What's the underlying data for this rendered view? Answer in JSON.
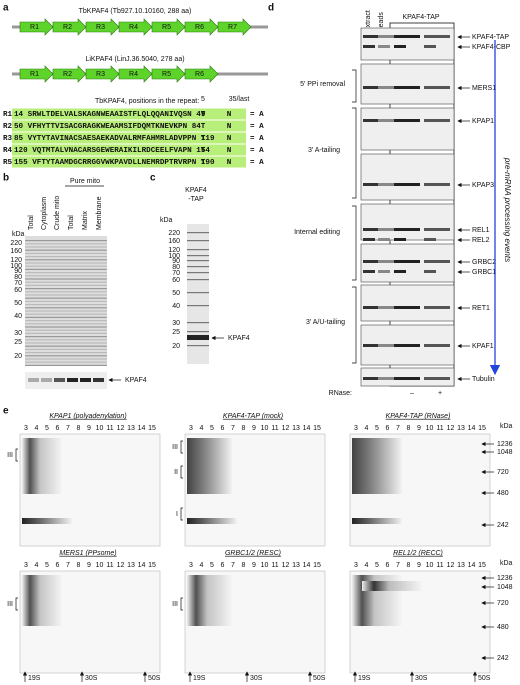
{
  "panels": {
    "a": {
      "label": "a",
      "tb_title": "TbKPAF4 (Tb927.10.10160, 288 aa)",
      "tb_repeats": [
        "R1",
        "R2",
        "R3",
        "R4",
        "R5",
        "R6",
        "R7"
      ],
      "li_title": "LiKPAF4 (LinJ.36.5040, 278 aa)",
      "li_repeats": [
        "R1",
        "R2",
        "R3",
        "R4",
        "R5",
        "R6"
      ],
      "pos_title": "TbKPAF4, positions in the repeat:",
      "pos5": "5",
      "pos35": "35/last",
      "rows": [
        {
          "name": "R1",
          "seq": "14 SRWLTDELVALSKAGNWEAAISTFLQLQQANIVQSN 49"
        },
        {
          "name": "R2",
          "seq": "50 VFHYTTVISACGRAGKWEAAMSIFDQMTKNEVKPN 84"
        },
        {
          "name": "R3",
          "seq": "85 VYTYTAVINACSAESAEKADVALRMFAHMRLADVPPN 119"
        },
        {
          "name": "R4",
          "seq": "120 VQTMTALVNACARSGEWERAIKILRDCEELFVAPN 154"
        },
        {
          "name": "R5",
          "seq": "155 VFTYTAAMDGCRRGGVWKPAVDLLNEMRDPTRVRPN 190"
        }
      ],
      "t": "T",
      "n": "N",
      "eq": "= A"
    },
    "b": {
      "label": "b",
      "lanes": [
        "Total",
        "Cytoplasm",
        "Crude mito",
        "Total",
        "Matrix",
        "Membrane"
      ],
      "group": "Pure mito",
      "kda": "kDa",
      "markers": [
        "220",
        "160",
        "120",
        "100",
        "90",
        "80",
        "70",
        "60",
        "50",
        "40",
        "30",
        "25",
        "20"
      ],
      "band": "KPAF4"
    },
    "c": {
      "label": "c",
      "lane": [
        "KPAF4",
        "-TAP"
      ],
      "kda": "kDa",
      "markers": [
        "220",
        "160",
        "120",
        "100",
        "90",
        "80",
        "70",
        "60",
        "50",
        "40",
        "30",
        "25",
        "20"
      ],
      "band": "KPAF4"
    },
    "d": {
      "label": "d",
      "lanes": [
        "Extract",
        "Beads"
      ],
      "group": "KPAF4-TAP",
      "blots": [
        [
          "KPAF4-TAP",
          "KPAF4-CBP"
        ],
        [
          "MERS1"
        ],
        [
          "KPAP1"
        ],
        [
          "KPAP3"
        ],
        [
          "REL1",
          "REL2"
        ],
        [
          "GRBC2",
          "GRBC1"
        ],
        [
          "RET1"
        ],
        [
          "KPAF1"
        ],
        [
          "Tubulin"
        ]
      ],
      "groups": [
        "5′ PPi removal",
        "3′ A-tailing",
        "Internal editing",
        "3′ A/U-tailing"
      ],
      "arrow": "pre-mRNA processing events",
      "rnase": "RNase:",
      "minus": "–",
      "plus": "+"
    },
    "e": {
      "label": "e",
      "titles": [
        "KPAP1 (polyadenylation)",
        "KPAF4-TAP (mock)",
        "KPAF4-TAP (RNase)",
        "MERS1 (PPsome)",
        "GRBC1/2 (RESC)",
        "REL1/2 (RECC)"
      ],
      "fractions": [
        "3",
        "4",
        "5",
        "6",
        "7",
        "8",
        "9",
        "10",
        "11",
        "12",
        "13",
        "14",
        "15"
      ],
      "kda": "kDa",
      "markers": [
        "1236",
        "1048",
        "720",
        "480",
        "242"
      ],
      "complexes": [
        "III",
        "II",
        "I"
      ],
      "sed": [
        "19S",
        "30S",
        "50S"
      ]
    }
  }
}
